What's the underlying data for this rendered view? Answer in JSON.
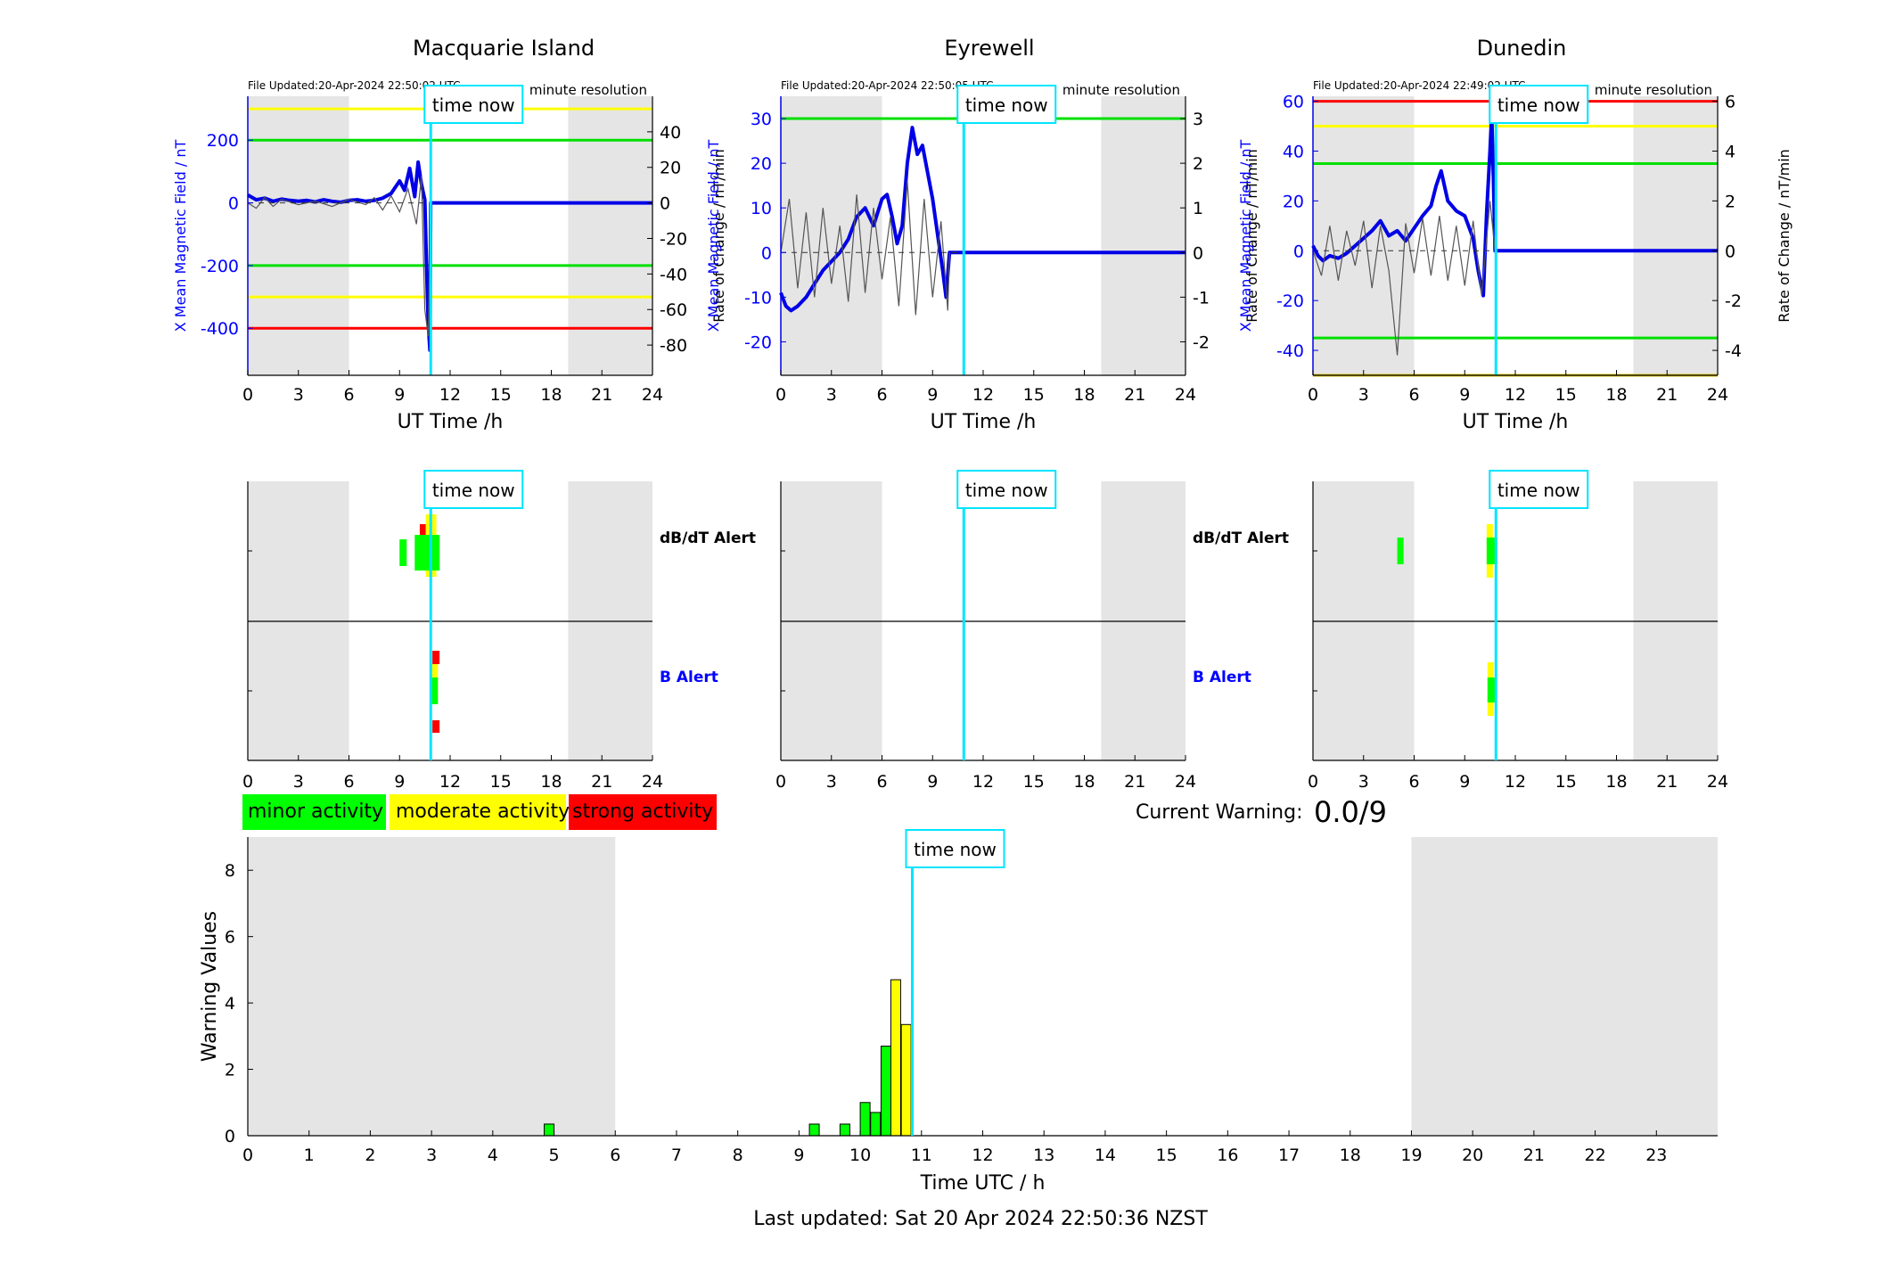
{
  "page": {
    "last_updated": "Last updated: Sat 20 Apr 2024 22:50:36 NZST",
    "current_warning_label": "Current Warning:",
    "current_warning_value": "0.0/9",
    "time_now_label": "time now",
    "colors": {
      "minor": "#00ff00",
      "moderate": "#ffff00",
      "strong": "#ff0000",
      "time_now": "#00e5ff",
      "night": "#e5e5e5",
      "series": "#0000e6"
    }
  },
  "legend": {
    "minor": "minor activity",
    "moderate": "moderate activity",
    "strong": "strong activity"
  },
  "alerts": {
    "dbdt_label": "dB/dT Alert",
    "b_label": "B Alert"
  },
  "chart_data": [
    {
      "type": "line",
      "title": "Macquarie Island",
      "file_updated": "File Updated:20-Apr-2024 22:50:02 UTC",
      "resolution": "minute resolution",
      "xlabel": "UT Time /h",
      "ylabel": "X Mean Magnetic Field / nT",
      "ylabel_right": "Rate of Change / nT/min",
      "xlim": [
        0,
        24
      ],
      "ylim": [
        -550,
        340
      ],
      "ylim_right": [
        -97,
        60
      ],
      "xticks": [
        "0",
        "3",
        "6",
        "9",
        "12",
        "15",
        "18",
        "21",
        "24"
      ],
      "yticks": [
        "200",
        "0",
        "-200",
        "-400"
      ],
      "yticks_right": [
        "40",
        "20",
        "0",
        "-20",
        "-40",
        "-60",
        "-80"
      ],
      "thresholds": [
        {
          "value": 300,
          "color": "#ffff00"
        },
        {
          "value": 200,
          "color": "#00e000"
        },
        {
          "value": -200,
          "color": "#00e000"
        },
        {
          "value": -300,
          "color": "#ffff00"
        },
        {
          "value": -400,
          "color": "#ff0000"
        }
      ],
      "night_shading": [
        [
          0,
          6
        ],
        [
          19,
          24
        ]
      ],
      "time_now": 10.85,
      "series": [
        {
          "name": "X Mean Magnetic Field",
          "axis": "left",
          "x": [
            0,
            0.5,
            1,
            1.5,
            2,
            2.5,
            3,
            3.5,
            4,
            4.5,
            5,
            5.5,
            6,
            6.5,
            7,
            7.5,
            8,
            8.5,
            9,
            9.3,
            9.6,
            9.9,
            10.1,
            10.3,
            10.5,
            10.6,
            10.7,
            10.8,
            10.85,
            11,
            24
          ],
          "y": [
            25,
            10,
            15,
            5,
            12,
            8,
            5,
            8,
            3,
            10,
            5,
            2,
            8,
            10,
            5,
            8,
            15,
            30,
            70,
            40,
            110,
            20,
            130,
            60,
            10,
            -200,
            -380,
            -470,
            0,
            0,
            0
          ]
        },
        {
          "name": "Rate of Change",
          "axis": "right",
          "color": "#555555",
          "x": [
            0,
            0.5,
            1,
            1.5,
            2,
            3,
            4,
            5,
            6,
            7,
            7.5,
            8,
            8.5,
            9,
            9.5,
            10,
            10.3,
            10.5,
            10.7,
            10.85
          ],
          "y": [
            0,
            -3,
            3,
            -2,
            2,
            -1,
            1,
            -2,
            2,
            -1,
            3,
            -4,
            4,
            -5,
            8,
            -12,
            15,
            -60,
            -75,
            0
          ]
        }
      ]
    },
    {
      "type": "line",
      "title": "Eyrewell",
      "file_updated": "File Updated:20-Apr-2024 22:50:05 UTC",
      "resolution": "minute resolution",
      "xlabel": "UT Time /h",
      "ylabel": "X Mean Magnetic Field / nT",
      "ylabel_right": "Rate of Change / nT/min",
      "xlim": [
        0,
        24
      ],
      "ylim": [
        -27.5,
        35
      ],
      "ylim_right": [
        -2.75,
        3.5
      ],
      "xticks": [
        "0",
        "3",
        "6",
        "9",
        "12",
        "15",
        "18",
        "21",
        "24"
      ],
      "yticks": [
        "30",
        "20",
        "10",
        "0",
        "-10",
        "-20"
      ],
      "yticks_right": [
        "3",
        "2",
        "1",
        "0",
        "-1",
        "-2"
      ],
      "thresholds": [
        {
          "value": 30,
          "color": "#00e000"
        }
      ],
      "night_shading": [
        [
          0,
          6
        ],
        [
          19,
          24
        ]
      ],
      "time_now": 10.85,
      "series": [
        {
          "name": "X Mean Magnetic Field",
          "axis": "left",
          "x": [
            0,
            0.3,
            0.6,
            1,
            1.5,
            2,
            2.5,
            3,
            3.5,
            4,
            4.5,
            5,
            5.5,
            6,
            6.3,
            6.6,
            6.9,
            7.2,
            7.5,
            7.8,
            8.1,
            8.4,
            8.7,
            9,
            9.3,
            9.6,
            9.8,
            10,
            24
          ],
          "y": [
            -9,
            -12,
            -13,
            -12,
            -10,
            -7,
            -4,
            -2,
            0,
            3,
            8,
            10,
            6,
            12,
            13,
            8,
            2,
            6,
            20,
            28,
            22,
            24,
            18,
            12,
            4,
            -4,
            -10,
            0,
            0
          ]
        },
        {
          "name": "Rate of Change",
          "axis": "right",
          "color": "#555555",
          "x": [
            0,
            0.5,
            1,
            1.5,
            2,
            2.5,
            3,
            3.5,
            4,
            4.5,
            5,
            5.5,
            6,
            6.5,
            7,
            7.5,
            8,
            8.5,
            9,
            9.5,
            9.9,
            10
          ],
          "y": [
            0,
            1.2,
            -0.8,
            0.9,
            -1,
            1,
            -0.7,
            0.6,
            -1.1,
            1.3,
            -0.9,
            1,
            -0.6,
            0.8,
            -1.2,
            1.6,
            -1.4,
            1.2,
            -1,
            0.7,
            -1.3,
            0
          ]
        }
      ]
    },
    {
      "type": "line",
      "title": "Dunedin",
      "file_updated": "File Updated:20-Apr-2024 22:49:02 UTC",
      "resolution": "minute resolution",
      "xlabel": "UT Time /h",
      "ylabel": "X Mean Magnetic Field / nT",
      "ylabel_right": "Rate of Change / nT/min",
      "xlim": [
        0,
        24
      ],
      "ylim": [
        -50,
        62
      ],
      "ylim_right": [
        -5,
        6.2
      ],
      "xticks": [
        "0",
        "3",
        "6",
        "9",
        "12",
        "15",
        "18",
        "21",
        "24"
      ],
      "yticks": [
        "60",
        "40",
        "20",
        "0",
        "-20",
        "-40"
      ],
      "yticks_right": [
        "6",
        "4",
        "2",
        "0",
        "-2",
        "-4"
      ],
      "thresholds": [
        {
          "value": 60,
          "color": "#ff0000"
        },
        {
          "value": 50,
          "color": "#ffff00"
        },
        {
          "value": 35,
          "color": "#00e000"
        },
        {
          "value": -35,
          "color": "#00e000"
        },
        {
          "value": -50,
          "color": "#d4c000"
        }
      ],
      "night_shading": [
        [
          0,
          6
        ],
        [
          19,
          24
        ]
      ],
      "time_now": 10.85,
      "series": [
        {
          "name": "X Mean Magnetic Field",
          "axis": "left",
          "x": [
            0,
            0.3,
            0.6,
            1,
            1.5,
            2,
            2.5,
            3,
            3.5,
            4,
            4.5,
            5,
            5.5,
            6,
            6.5,
            7,
            7.3,
            7.6,
            8,
            8.5,
            9,
            9.5,
            9.8,
            10.1,
            10.3,
            10.5,
            10.6,
            10.7,
            10.8,
            24
          ],
          "y": [
            2,
            -2,
            -4,
            -2,
            -3,
            -1,
            2,
            5,
            8,
            12,
            6,
            8,
            4,
            9,
            14,
            18,
            26,
            32,
            20,
            16,
            14,
            5,
            -8,
            -18,
            15,
            40,
            55,
            30,
            0,
            0
          ]
        },
        {
          "name": "Rate of Change",
          "axis": "right",
          "color": "#555555",
          "x": [
            0,
            0.5,
            1,
            1.5,
            2,
            2.5,
            3,
            3.5,
            4,
            4.5,
            5,
            5.5,
            6,
            6.5,
            7,
            7.5,
            8,
            8.5,
            9,
            9.5,
            10,
            10.5,
            10.8
          ],
          "y": [
            0,
            -1,
            1,
            -1.2,
            0.8,
            -0.6,
            1.2,
            -1.5,
            1,
            -0.8,
            -4.2,
            1.1,
            -0.9,
            1.3,
            -1,
            1.4,
            -1.2,
            1,
            -1.4,
            1.2,
            -1.8,
            2,
            0
          ]
        }
      ]
    },
    {
      "type": "bar",
      "xlabel": "Time UTC / h",
      "ylabel": "Warning Values",
      "xlim": [
        0,
        24
      ],
      "ylim": [
        0,
        9
      ],
      "xticks": [
        "0",
        "1",
        "2",
        "3",
        "4",
        "5",
        "6",
        "7",
        "8",
        "9",
        "10",
        "11",
        "12",
        "13",
        "14",
        "15",
        "16",
        "17",
        "18",
        "19",
        "20",
        "21",
        "22",
        "23"
      ],
      "yticks": [
        "0",
        "2",
        "4",
        "6",
        "8"
      ],
      "night_shading": [
        [
          0,
          6
        ],
        [
          19,
          24
        ]
      ],
      "time_now": 10.85,
      "bars": [
        {
          "x": 4.92,
          "value": 0.35,
          "level": "minor"
        },
        {
          "x": 9.25,
          "value": 0.35,
          "level": "minor"
        },
        {
          "x": 9.75,
          "value": 0.35,
          "level": "minor"
        },
        {
          "x": 10.08,
          "value": 1.0,
          "level": "minor"
        },
        {
          "x": 10.25,
          "value": 0.7,
          "level": "minor"
        },
        {
          "x": 10.42,
          "value": 2.7,
          "level": "minor"
        },
        {
          "x": 10.58,
          "value": 4.7,
          "level": "moderate"
        },
        {
          "x": 10.75,
          "value": 3.35,
          "level": "moderate"
        }
      ]
    }
  ]
}
